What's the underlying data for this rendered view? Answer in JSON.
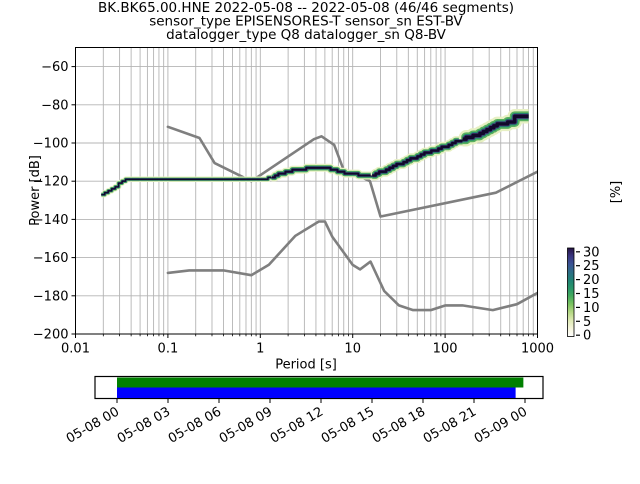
{
  "title": {
    "line1": "BK.BK65.00.HNE   2022-05-08 -- 2022-05-08  (46/46 segments)",
    "line2": "sensor_type EPISENSORES-T sensor_sn EST-BV",
    "line3": "datalogger_type Q8 datalogger_sn Q8-BV"
  },
  "axes": {
    "x": {
      "label": "Period [s]",
      "scale": "log",
      "range": [
        0.01,
        1000
      ],
      "tick_values": [
        0.01,
        0.1,
        1,
        10,
        100,
        1000
      ],
      "tick_labels": [
        "0.01",
        "0.1",
        "1",
        "10",
        "100",
        "1000"
      ],
      "grid": true
    },
    "y": {
      "label": "Power [dB]",
      "range": [
        -200,
        -50
      ],
      "tick_values": [
        -60,
        -80,
        -100,
        -120,
        -140,
        -160,
        -180,
        -200
      ],
      "tick_labels": [
        "−60",
        "−80",
        "−100",
        "−120",
        "−140",
        "−160",
        "−180",
        "−200"
      ],
      "grid": true
    }
  },
  "colorbar": {
    "label": "[%]",
    "tick_values": [
      0,
      5,
      10,
      15,
      20,
      25,
      30
    ],
    "range": [
      0,
      31.3
    ],
    "gradient_bottom_to_top": [
      "#ffffff",
      "#f6f5dc",
      "#dfeab4",
      "#b5d884",
      "#7cc360",
      "#45ab5e",
      "#289669",
      "#1f8274",
      "#2d6d86",
      "#3b5395",
      "#3a3580",
      "#251243"
    ]
  },
  "chart_data": {
    "type": "line",
    "xlabel": "Period [s]",
    "ylabel": "Power [dB]",
    "xscale": "log",
    "xlim": [
      0.01,
      1000
    ],
    "ylim": [
      -200,
      -50
    ],
    "legend": "none",
    "series": [
      {
        "name": "psd_mode_band",
        "description": "PPSD probability histogram ridge (dark core with green/pale density fringes)",
        "points": [
          [
            0.019,
            -126.6
          ],
          [
            0.022,
            -125.2
          ],
          [
            0.025,
            -123.8
          ],
          [
            0.028,
            -122.2
          ],
          [
            0.031,
            -120.3
          ],
          [
            0.034,
            -119.4
          ],
          [
            0.05,
            -119.3
          ],
          [
            0.1,
            -119.4
          ],
          [
            0.2,
            -119.5
          ],
          [
            0.4,
            -119.4
          ],
          [
            0.85,
            -119.2
          ],
          [
            1.1,
            -118.6
          ],
          [
            1.5,
            -116.8
          ],
          [
            2.0,
            -114.9
          ],
          [
            2.6,
            -113.9
          ],
          [
            3.3,
            -113.1
          ],
          [
            4.3,
            -112.9
          ],
          [
            5.5,
            -113.5
          ],
          [
            7.0,
            -114.8
          ],
          [
            9.0,
            -116.0
          ],
          [
            11.0,
            -116.6
          ],
          [
            13.5,
            -117.1
          ],
          [
            16.0,
            -116.8
          ],
          [
            18.0,
            -116.0
          ],
          [
            20.0,
            -115.1
          ],
          [
            26.0,
            -112.7
          ],
          [
            33.0,
            -110.6
          ],
          [
            42.0,
            -108.4
          ],
          [
            54.0,
            -106.2
          ],
          [
            70.0,
            -104.3
          ],
          [
            89.0,
            -102.7
          ],
          [
            115.0,
            -100.5
          ],
          [
            147.0,
            -98.4
          ],
          [
            190.0,
            -96.6
          ],
          [
            242.0,
            -94.8
          ],
          [
            300.0,
            -92.7
          ],
          [
            352.0,
            -90.7
          ],
          [
            380.0,
            -89.7
          ],
          [
            520.0,
            -89.4
          ],
          [
            535.0,
            -86.4
          ],
          [
            780.0,
            -86.3
          ]
        ]
      },
      {
        "name": "peterson_nhnm",
        "description": "Peterson New High Noise Model (grey)",
        "points": [
          [
            0.1,
            -91.5
          ],
          [
            0.22,
            -97.4
          ],
          [
            0.32,
            -110.5
          ],
          [
            0.8,
            -120.0
          ],
          [
            3.8,
            -98.0
          ],
          [
            4.6,
            -96.5
          ],
          [
            6.3,
            -101.0
          ],
          [
            7.9,
            -113.5
          ],
          [
            15.4,
            -120.0
          ],
          [
            20.0,
            -138.5
          ],
          [
            354.8,
            -126.0
          ],
          [
            1000.0,
            -115.0
          ]
        ]
      },
      {
        "name": "peterson_nlnm",
        "description": "Peterson New Low Noise Model (grey)",
        "points": [
          [
            0.1,
            -168.0
          ],
          [
            0.17,
            -166.7
          ],
          [
            0.4,
            -166.7
          ],
          [
            0.8,
            -169.2
          ],
          [
            1.24,
            -163.7
          ],
          [
            2.4,
            -148.6
          ],
          [
            4.3,
            -141.1
          ],
          [
            5.0,
            -141.1
          ],
          [
            6.0,
            -149.0
          ],
          [
            10.0,
            -163.8
          ],
          [
            12.0,
            -166.2
          ],
          [
            15.6,
            -162.1
          ],
          [
            21.9,
            -177.5
          ],
          [
            31.6,
            -185.0
          ],
          [
            45.0,
            -187.5
          ],
          [
            70.0,
            -187.5
          ],
          [
            101.0,
            -185.0
          ],
          [
            154.0,
            -185.0
          ],
          [
            328.0,
            -187.5
          ],
          [
            600.0,
            -184.4
          ],
          [
            1000.0,
            -178.5
          ]
        ]
      }
    ]
  },
  "availability": {
    "tick_labels": [
      "05-08 00",
      "05-08 03",
      "05-08 06",
      "05-08 09",
      "05-08 12",
      "05-08 15",
      "05-08 18",
      "05-08 21",
      "05-09 00"
    ],
    "bars": [
      {
        "name": "processed-segments",
        "color": "#008000",
        "start_frac": 0.0,
        "end_frac": 0.996
      },
      {
        "name": "data-coverage",
        "color": "#0000ff",
        "start_frac": 0.0,
        "end_frac": 0.977
      }
    ]
  },
  "colors": {
    "noise_model_line": "#7f7f7f",
    "grid_line": "#b4b4b4",
    "psd_layers": [
      "#e7f0c3",
      "#58b05e",
      "#1f8a70",
      "#433071",
      "#10082a"
    ],
    "availability_green": "#008000",
    "availability_blue": "#0000ff"
  }
}
